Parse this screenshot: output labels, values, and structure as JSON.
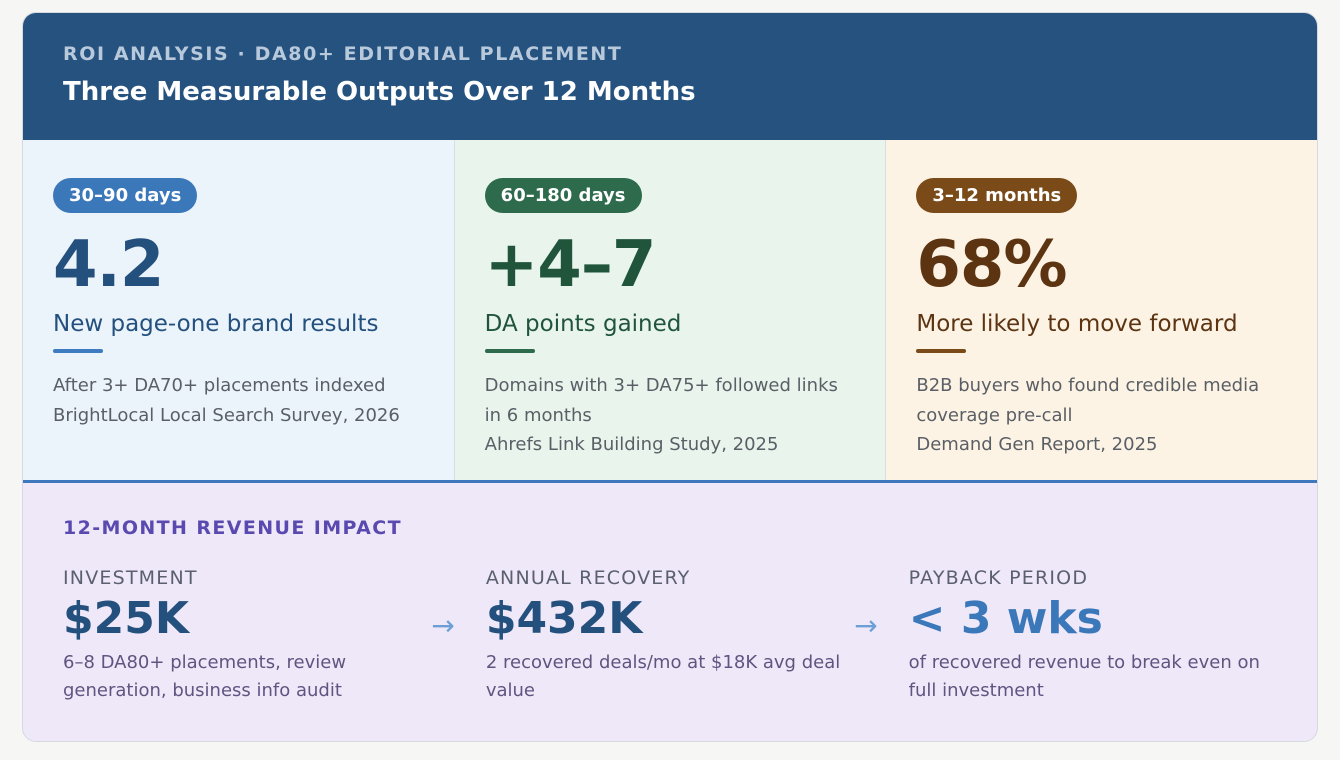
{
  "header": {
    "eyebrow": "ROI ANALYSIS · DA80+ EDITORIAL PLACEMENT",
    "title": "Three Measurable Outputs Over 12 Months"
  },
  "metrics": [
    {
      "pill": "30–90 days",
      "value": "4.2",
      "label": "New page-one brand results",
      "notes": [
        "After 3+ DA70+ placements indexed",
        "BrightLocal Local Search Survey, 2026"
      ],
      "accent": "#3b78ba"
    },
    {
      "pill": "60–180 days",
      "value": "+4–7",
      "label": "DA points gained",
      "notes": [
        "Domains with 3+ DA75+ followed links in 6 months",
        "Ahrefs Link Building Study, 2025"
      ],
      "accent": "#2d6b4c"
    },
    {
      "pill": "3–12 months",
      "value": "68%",
      "label": "More likely to move forward",
      "notes": [
        "B2B buyers who found credible media coverage pre-call",
        "Demand Gen Report, 2025"
      ],
      "accent": "#7a4a18"
    }
  ],
  "revenue": {
    "title": "12-MONTH REVENUE IMPACT",
    "arrow_icon": "arrow-right-icon",
    "columns": [
      {
        "label": "INVESTMENT",
        "value": "$25K",
        "desc": "6–8 DA80+ placements, review generation, business info audit"
      },
      {
        "label": "ANNUAL RECOVERY",
        "value": "$432K",
        "desc": "2 recovered deals/mo at $18K avg deal value"
      },
      {
        "label": "PAYBACK PERIOD",
        "value": "< 3 wks",
        "desc": "of recovered revenue to break even on full investment"
      }
    ]
  }
}
